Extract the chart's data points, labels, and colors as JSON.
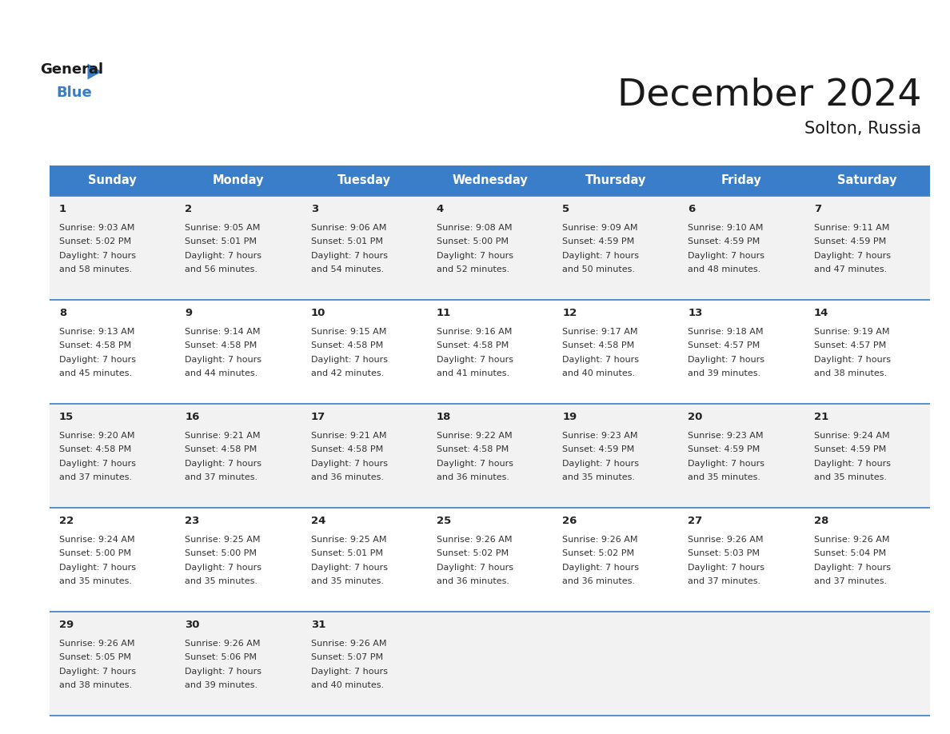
{
  "title": "December 2024",
  "subtitle": "Solton, Russia",
  "header_color": "#3A7DC9",
  "header_text_color": "#FFFFFF",
  "day_names": [
    "Sunday",
    "Monday",
    "Tuesday",
    "Wednesday",
    "Thursday",
    "Friday",
    "Saturday"
  ],
  "background_color": "#FFFFFF",
  "cell_bg_color": "#F2F2F2",
  "row_line_color": "#3A7DC9",
  "text_color": "#333333",
  "days": [
    {
      "day": 1,
      "col": 0,
      "row": 0,
      "sunrise": "9:03 AM",
      "sunset": "5:02 PM",
      "daylight": "7 hours",
      "daylight2": "and 58 minutes."
    },
    {
      "day": 2,
      "col": 1,
      "row": 0,
      "sunrise": "9:05 AM",
      "sunset": "5:01 PM",
      "daylight": "7 hours",
      "daylight2": "and 56 minutes."
    },
    {
      "day": 3,
      "col": 2,
      "row": 0,
      "sunrise": "9:06 AM",
      "sunset": "5:01 PM",
      "daylight": "7 hours",
      "daylight2": "and 54 minutes."
    },
    {
      "day": 4,
      "col": 3,
      "row": 0,
      "sunrise": "9:08 AM",
      "sunset": "5:00 PM",
      "daylight": "7 hours",
      "daylight2": "and 52 minutes."
    },
    {
      "day": 5,
      "col": 4,
      "row": 0,
      "sunrise": "9:09 AM",
      "sunset": "4:59 PM",
      "daylight": "7 hours",
      "daylight2": "and 50 minutes."
    },
    {
      "day": 6,
      "col": 5,
      "row": 0,
      "sunrise": "9:10 AM",
      "sunset": "4:59 PM",
      "daylight": "7 hours",
      "daylight2": "and 48 minutes."
    },
    {
      "day": 7,
      "col": 6,
      "row": 0,
      "sunrise": "9:11 AM",
      "sunset": "4:59 PM",
      "daylight": "7 hours",
      "daylight2": "and 47 minutes."
    },
    {
      "day": 8,
      "col": 0,
      "row": 1,
      "sunrise": "9:13 AM",
      "sunset": "4:58 PM",
      "daylight": "7 hours",
      "daylight2": "and 45 minutes."
    },
    {
      "day": 9,
      "col": 1,
      "row": 1,
      "sunrise": "9:14 AM",
      "sunset": "4:58 PM",
      "daylight": "7 hours",
      "daylight2": "and 44 minutes."
    },
    {
      "day": 10,
      "col": 2,
      "row": 1,
      "sunrise": "9:15 AM",
      "sunset": "4:58 PM",
      "daylight": "7 hours",
      "daylight2": "and 42 minutes."
    },
    {
      "day": 11,
      "col": 3,
      "row": 1,
      "sunrise": "9:16 AM",
      "sunset": "4:58 PM",
      "daylight": "7 hours",
      "daylight2": "and 41 minutes."
    },
    {
      "day": 12,
      "col": 4,
      "row": 1,
      "sunrise": "9:17 AM",
      "sunset": "4:58 PM",
      "daylight": "7 hours",
      "daylight2": "and 40 minutes."
    },
    {
      "day": 13,
      "col": 5,
      "row": 1,
      "sunrise": "9:18 AM",
      "sunset": "4:57 PM",
      "daylight": "7 hours",
      "daylight2": "and 39 minutes."
    },
    {
      "day": 14,
      "col": 6,
      "row": 1,
      "sunrise": "9:19 AM",
      "sunset": "4:57 PM",
      "daylight": "7 hours",
      "daylight2": "and 38 minutes."
    },
    {
      "day": 15,
      "col": 0,
      "row": 2,
      "sunrise": "9:20 AM",
      "sunset": "4:58 PM",
      "daylight": "7 hours",
      "daylight2": "and 37 minutes."
    },
    {
      "day": 16,
      "col": 1,
      "row": 2,
      "sunrise": "9:21 AM",
      "sunset": "4:58 PM",
      "daylight": "7 hours",
      "daylight2": "and 37 minutes."
    },
    {
      "day": 17,
      "col": 2,
      "row": 2,
      "sunrise": "9:21 AM",
      "sunset": "4:58 PM",
      "daylight": "7 hours",
      "daylight2": "and 36 minutes."
    },
    {
      "day": 18,
      "col": 3,
      "row": 2,
      "sunrise": "9:22 AM",
      "sunset": "4:58 PM",
      "daylight": "7 hours",
      "daylight2": "and 36 minutes."
    },
    {
      "day": 19,
      "col": 4,
      "row": 2,
      "sunrise": "9:23 AM",
      "sunset": "4:59 PM",
      "daylight": "7 hours",
      "daylight2": "and 35 minutes."
    },
    {
      "day": 20,
      "col": 5,
      "row": 2,
      "sunrise": "9:23 AM",
      "sunset": "4:59 PM",
      "daylight": "7 hours",
      "daylight2": "and 35 minutes."
    },
    {
      "day": 21,
      "col": 6,
      "row": 2,
      "sunrise": "9:24 AM",
      "sunset": "4:59 PM",
      "daylight": "7 hours",
      "daylight2": "and 35 minutes."
    },
    {
      "day": 22,
      "col": 0,
      "row": 3,
      "sunrise": "9:24 AM",
      "sunset": "5:00 PM",
      "daylight": "7 hours",
      "daylight2": "and 35 minutes."
    },
    {
      "day": 23,
      "col": 1,
      "row": 3,
      "sunrise": "9:25 AM",
      "sunset": "5:00 PM",
      "daylight": "7 hours",
      "daylight2": "and 35 minutes."
    },
    {
      "day": 24,
      "col": 2,
      "row": 3,
      "sunrise": "9:25 AM",
      "sunset": "5:01 PM",
      "daylight": "7 hours",
      "daylight2": "and 35 minutes."
    },
    {
      "day": 25,
      "col": 3,
      "row": 3,
      "sunrise": "9:26 AM",
      "sunset": "5:02 PM",
      "daylight": "7 hours",
      "daylight2": "and 36 minutes."
    },
    {
      "day": 26,
      "col": 4,
      "row": 3,
      "sunrise": "9:26 AM",
      "sunset": "5:02 PM",
      "daylight": "7 hours",
      "daylight2": "and 36 minutes."
    },
    {
      "day": 27,
      "col": 5,
      "row": 3,
      "sunrise": "9:26 AM",
      "sunset": "5:03 PM",
      "daylight": "7 hours",
      "daylight2": "and 37 minutes."
    },
    {
      "day": 28,
      "col": 6,
      "row": 3,
      "sunrise": "9:26 AM",
      "sunset": "5:04 PM",
      "daylight": "7 hours",
      "daylight2": "and 37 minutes."
    },
    {
      "day": 29,
      "col": 0,
      "row": 4,
      "sunrise": "9:26 AM",
      "sunset": "5:05 PM",
      "daylight": "7 hours",
      "daylight2": "and 38 minutes."
    },
    {
      "day": 30,
      "col": 1,
      "row": 4,
      "sunrise": "9:26 AM",
      "sunset": "5:06 PM",
      "daylight": "7 hours",
      "daylight2": "and 39 minutes."
    },
    {
      "day": 31,
      "col": 2,
      "row": 4,
      "sunrise": "9:26 AM",
      "sunset": "5:07 PM",
      "daylight": "7 hours",
      "daylight2": "and 40 minutes."
    }
  ]
}
